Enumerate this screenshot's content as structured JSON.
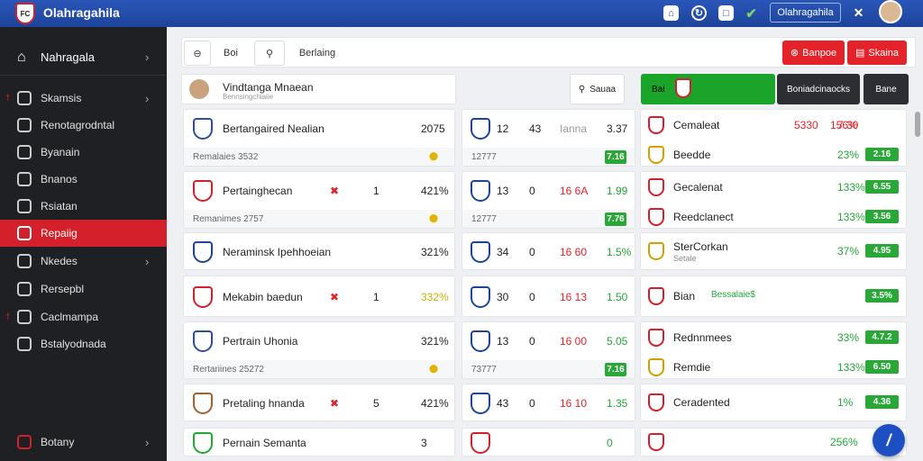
{
  "app": {
    "title": "Olahragahila",
    "account_button": "Olahragahila",
    "avatar_alt": "avatar"
  },
  "sidebar": {
    "header": "Nahragala",
    "items": [
      {
        "label": "Skamsis",
        "flag": "†"
      },
      {
        "label": "Renotagrodntal"
      },
      {
        "label": "Byanain"
      },
      {
        "label": "Bnanos"
      },
      {
        "label": "Rsiatan"
      },
      {
        "label": "Repaiig"
      },
      {
        "label": "Nkedes"
      },
      {
        "label": "Rersepbl"
      },
      {
        "label": "Caclmampa",
        "flag": "†"
      },
      {
        "label": "Bstalyodnada"
      }
    ],
    "footer": "Botany"
  },
  "toolbar": {
    "back": "Boi",
    "search_placeholder": "Berlaing",
    "btn1": "Banpoe",
    "btn2": "Skaina"
  },
  "search2": {
    "name": "Vindtanga Mnaean",
    "sub": "Bennsingchiaiie",
    "search_label": "Sauaa",
    "green_label": "Bai",
    "dark1": "Boniadcinaocks",
    "dark2": "Bane"
  },
  "col1": [
    {
      "name": "Bertangaired Nealian",
      "value": "2075",
      "sub": "Remalaies 3532"
    },
    {
      "name": "Pertainghecan",
      "value": "421%",
      "mark": "1",
      "sub": "Remanimes 2757"
    },
    {
      "name": "Neraminsk Ipehhoeian",
      "value": "321%"
    },
    {
      "name": "Mekabin baedun",
      "value": "332%",
      "mark": "1"
    },
    {
      "name": "Pertrain Uhonia",
      "value": "321%",
      "sub": "Rertariines 25272"
    },
    {
      "name": "Pretaling hnanda",
      "value": "421%",
      "mark": "5"
    },
    {
      "name": "Pernain Semanta",
      "value": "3"
    }
  ],
  "col2": [
    {
      "a": "12",
      "b": "43",
      "c": "Ianna",
      "d": "3.37",
      "pill": "7.16",
      "sub": "12777"
    },
    {
      "a": "13",
      "b": "0",
      "c": "16 6A",
      "d": "1.99",
      "pill": "7.76",
      "sub": "12777"
    },
    {
      "a": "34",
      "b": "0",
      "c": "16 60",
      "d": "1.5%"
    },
    {
      "a": "30",
      "b": "0",
      "c": "16 13",
      "d": "1.50"
    },
    {
      "a": "13",
      "b": "0",
      "c": "16 00",
      "d": "5.05",
      "pill": "7.16",
      "sub": "73777"
    },
    {
      "a": "43",
      "b": "0",
      "c": "16 10",
      "d": "1.35"
    },
    {
      "a": "",
      "b": "",
      "c": "",
      "d": "0"
    }
  ],
  "col3": [
    {
      "name": "Cemaleat",
      "v1": "5330",
      "v2": "7.30",
      "v3": "156%"
    },
    {
      "name": "Beedde",
      "v3": "23%",
      "pill": "2.16"
    },
    {
      "name": "Gecalenat",
      "v3": "133%",
      "pill": "6.55"
    },
    {
      "name": "Reedclanect",
      "v3": "133%",
      "pill": "3.56"
    },
    {
      "name": "SterCorkan",
      "sub": "Setale",
      "v3": "37%",
      "pill": "4.95"
    },
    {
      "name": "Bian",
      "tag": "Bessalaie$",
      "pill": "3.5%"
    },
    {
      "name": "Rednnmees",
      "v3": "33%",
      "pill": "4.7.2"
    },
    {
      "name": "Remdie",
      "v3": "133%",
      "pill": "6.50"
    },
    {
      "name": "Ceradented",
      "v3": "1%",
      "pill": "4.36"
    },
    {
      "name": "",
      "v3": "256%"
    }
  ],
  "colors": {
    "blue": "#1d449b",
    "red": "#e4222a",
    "green": "#23a636",
    "sidebar": "#1f2023"
  }
}
